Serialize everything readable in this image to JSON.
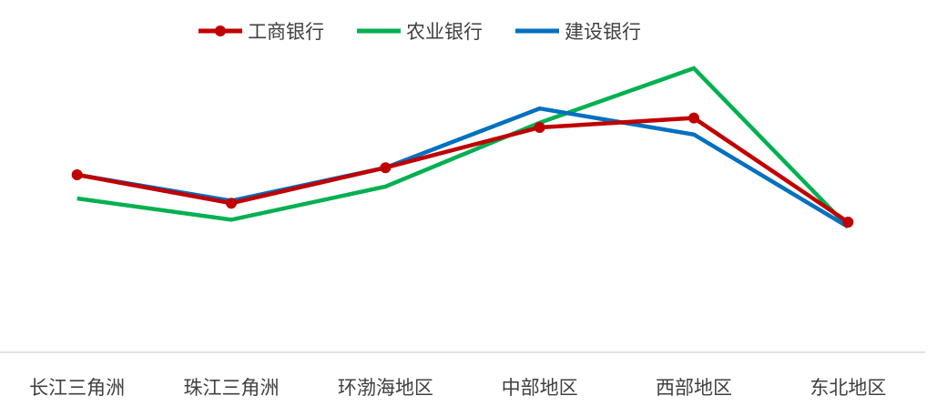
{
  "chart_data": {
    "type": "line",
    "categories": [
      "长江三角洲",
      "珠江三角洲",
      "环渤海地区",
      "中部地区",
      "西部地区",
      "东北地区"
    ],
    "series": [
      {
        "name": "工商银行",
        "color": "#c00000",
        "markers": true,
        "values": [
          0.55,
          0.43,
          0.58,
          0.75,
          0.79,
          0.35
        ]
      },
      {
        "name": "农业银行",
        "color": "#00b050",
        "markers": false,
        "values": [
          0.45,
          0.36,
          0.5,
          0.77,
          1.0,
          0.33
        ]
      },
      {
        "name": "建设银行",
        "color": "#0070c0",
        "markers": false,
        "values": [
          0.55,
          0.44,
          0.58,
          0.83,
          0.72,
          0.33
        ]
      }
    ],
    "ylim": [
      -0.2,
      1.05
    ],
    "grid": false,
    "legend_position": "top-center",
    "title": "",
    "xlabel": "",
    "ylabel": ""
  }
}
